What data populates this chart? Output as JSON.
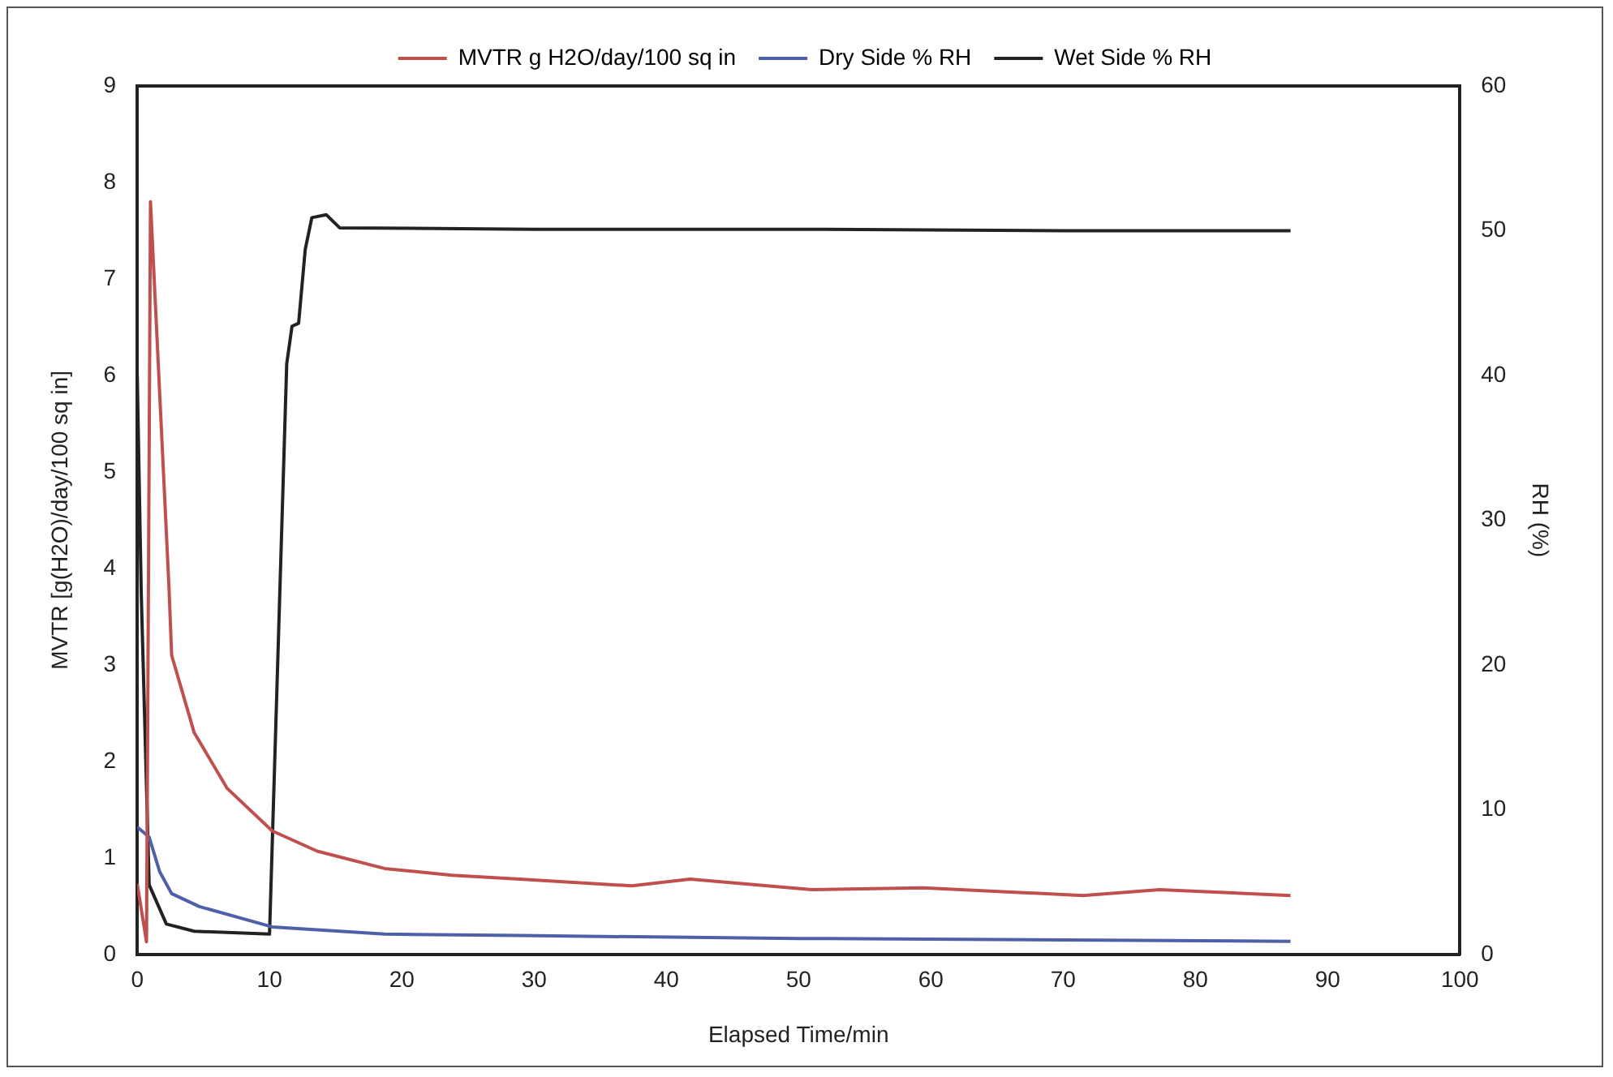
{
  "chart_data": {
    "type": "line",
    "xlabel": "Elapsed Time/min",
    "ylabel": "MVTR [g(H2O)/day/100 sq in]",
    "y2label": "RH (%)",
    "xlim": [
      0,
      100
    ],
    "xticks": [
      0,
      10,
      20,
      30,
      40,
      50,
      60,
      70,
      80,
      90,
      100
    ],
    "ylim": [
      0,
      9
    ],
    "yticks": [
      0,
      1,
      2,
      3,
      4,
      5,
      6,
      7,
      8,
      9
    ],
    "y2lim": [
      0,
      60
    ],
    "y2ticks": [
      0,
      10,
      20,
      30,
      40,
      50,
      60
    ],
    "grid": false,
    "legend": "top",
    "marker": "none",
    "line_style": "solid",
    "series": [
      {
        "name": "MVTR g H2O/day/100 sq in",
        "color": "#c0504d",
        "x": [
          0,
          0.7,
          1.0,
          2.4,
          2.6,
          4.3,
          6.8,
          10.2,
          13.6,
          18.7,
          23.8,
          28.9,
          37.4,
          41.8,
          51,
          59.4,
          71.5,
          77.3,
          87.2
        ],
        "values": [
          0.73,
          0.13,
          7.8,
          3.8,
          3.1,
          2.3,
          1.72,
          1.28,
          1.07,
          0.89,
          0.82,
          0.78,
          0.71,
          0.78,
          0.67,
          0.69,
          0.61,
          0.67,
          0.61
        ]
      },
      {
        "name": "Dry Side % RH",
        "color": "#4f5fa8",
        "axis": "y2",
        "x": [
          0,
          0.9,
          1.7,
          2.6,
          4.7,
          10.2,
          18.7,
          28.9,
          50,
          70,
          87.2
        ],
        "values": [
          8.8,
          8.1,
          5.7,
          4.2,
          3.3,
          1.9,
          1.4,
          1.3,
          1.1,
          1.0,
          0.9
        ]
      },
      {
        "name": "Wet Side % RH",
        "color": "#222222",
        "axis": "y2",
        "x": [
          0,
          0.3,
          0.9,
          2.2,
          4.3,
          10.0,
          11.3,
          11.7,
          12.2,
          12.7,
          13.2,
          14.3,
          15.3,
          30,
          50,
          70,
          87.2
        ],
        "values": [
          40,
          25,
          4.8,
          2.1,
          1.6,
          1.4,
          40.8,
          43.4,
          43.6,
          48.7,
          50.9,
          51.1,
          50.2,
          50.1,
          50.1,
          50.0,
          50.0
        ]
      }
    ]
  }
}
